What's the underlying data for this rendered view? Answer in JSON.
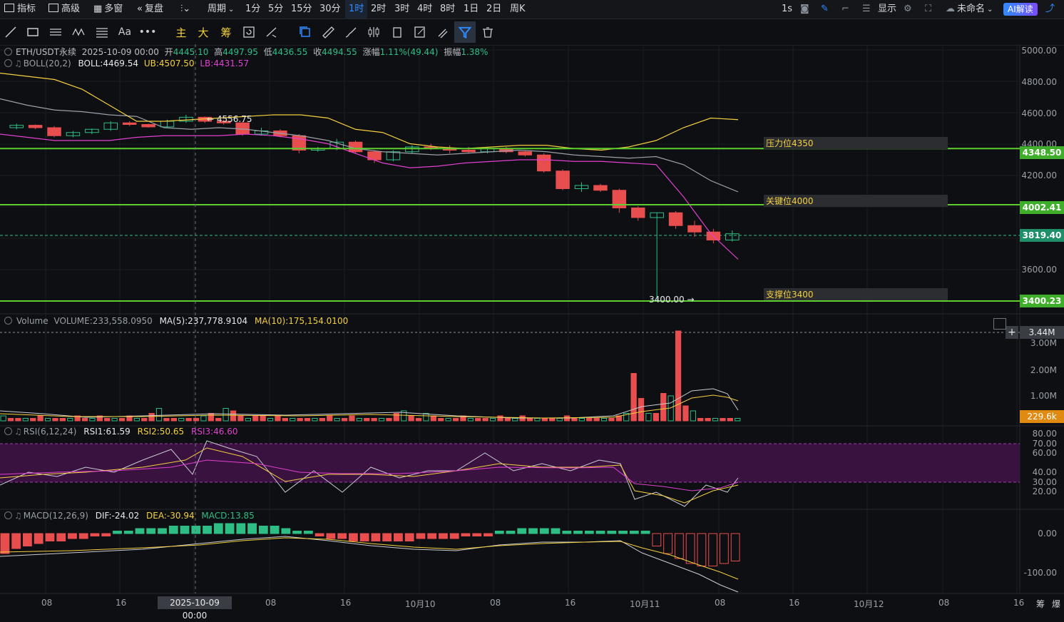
{
  "topbar": {
    "indicators": "指标",
    "advanced": "高级",
    "multiwin": "多窗",
    "replay": "复盘",
    "period": "周期",
    "intervals": [
      "1分",
      "5分",
      "15分",
      "30分",
      "1时",
      "2时",
      "3时",
      "4时",
      "8时",
      "1日",
      "2日",
      "周K"
    ],
    "active_interval": "1时",
    "chart_interval": "1s",
    "display": "显示",
    "layout_name": "未命名",
    "ai_button": "AI解读"
  },
  "toolbar": {
    "main_label": "主",
    "big_label": "大",
    "chip_label": "筹"
  },
  "legend": {
    "symbol": "ETH/USDT永续",
    "datetime": "2025-10-09 00:00",
    "open_label": "开",
    "open": "4445.10",
    "high_label": "高",
    "high": "4497.95",
    "low_label": "低",
    "low": "4436.55",
    "close_label": "收",
    "close": "4494.55",
    "change_label": "涨幅",
    "change": "1.11%(49.44)",
    "amp_label": "振幅",
    "amp": "1.38%",
    "boll_name": "BOLL(20,2)",
    "boll": "BOLL:4469.54",
    "ub": "UB:4507.50",
    "lb": "LB:4431.57"
  },
  "price_axis": [
    "5000.00",
    "4800.00",
    "4600.00",
    "4400.00",
    "4200.00",
    "3600.00"
  ],
  "price_tags": {
    "resist": "4348.50",
    "key": "4002.41",
    "current": "3819.40",
    "support": "3400.23"
  },
  "zones": {
    "resist": "压力位4350",
    "key": "关键位4000",
    "support": "支撑位3400"
  },
  "annotations": {
    "high_mark": "← 4556.75",
    "low_mark": "3400.00 →"
  },
  "volume": {
    "label": "Volume",
    "value": "VOLUME:233,558.0950",
    "ma5": "MA(5):237,778.9104",
    "ma10": "MA(10):175,154.0100",
    "axis": [
      "3.00M",
      "2.00M",
      "1.00M"
    ],
    "tag_top": "3.44M",
    "tag_cur": "229.6k"
  },
  "rsi": {
    "name": "RSI(6,12,24)",
    "rsi1": "RSI1:61.59",
    "rsi2": "RSI2:50.65",
    "rsi3": "RSI3:46.60",
    "axis": [
      "80.00",
      "70.00",
      "60.00",
      "40.00",
      "30.00",
      "20.00"
    ]
  },
  "macd": {
    "name": "MACD(12,26,9)",
    "dif": "DIF:-24.02",
    "dea": "DEA:-30.94",
    "macd": "MACD:13.85",
    "axis": [
      "0.00",
      "-100.00"
    ]
  },
  "xaxis": {
    "labels": [
      "08",
      "16",
      "08",
      "16",
      "10月10",
      "08",
      "16",
      "10月11",
      "08",
      "16",
      "10月12",
      "08",
      "16"
    ],
    "crosshair_label": "2025-10-09 00:00",
    "footer_icons": [
      "筹",
      "爆"
    ]
  },
  "colors": {
    "up": "#2ebd85",
    "down": "#e84e4e",
    "ub": "#f4d03f",
    "lb": "#e040d0",
    "level": "#5ccf2f",
    "accent": "#2f8cff"
  },
  "chart_data": {
    "type": "line",
    "series": [
      {
        "name": "BOLL",
        "values": [
          4660,
          4620,
          4590,
          4580,
          4560,
          4550,
          4480,
          4470,
          4480,
          4470,
          4450,
          4430,
          4400,
          4350,
          4330,
          4320,
          4310,
          4320,
          4330,
          4340,
          4330,
          4310,
          4300,
          4290,
          4300,
          4250,
          4150,
          4080
        ]
      },
      {
        "name": "UB",
        "values": [
          4820,
          4800,
          4780,
          4720,
          4620,
          4520,
          4520,
          4530,
          4540,
          4550,
          4560,
          4560,
          4540,
          4470,
          4450,
          4380,
          4360,
          4350,
          4360,
          4370,
          4370,
          4350,
          4340,
          4360,
          4400,
          4480,
          4540,
          4530
        ]
      },
      {
        "name": "LB",
        "values": [
          4440,
          4420,
          4400,
          4400,
          4400,
          4420,
          4430,
          4430,
          4430,
          4440,
          4430,
          4410,
          4380,
          4320,
          4260,
          4230,
          4240,
          4260,
          4270,
          4280,
          4280,
          4270,
          4270,
          4260,
          4250,
          4050,
          3820,
          3660
        ]
      }
    ],
    "candles": [
      [
        4480,
        4505,
        4470,
        4495
      ],
      [
        4495,
        4500,
        4470,
        4480
      ],
      [
        4480,
        4490,
        4420,
        4430
      ],
      [
        4430,
        4460,
        4420,
        4450
      ],
      [
        4450,
        4475,
        4440,
        4470
      ],
      [
        4470,
        4520,
        4460,
        4510
      ],
      [
        4510,
        4520,
        4490,
        4500
      ],
      [
        4500,
        4505,
        4480,
        4485
      ],
      [
        4485,
        4530,
        4480,
        4520
      ],
      [
        4520,
        4560,
        4510,
        4545
      ],
      [
        4545,
        4550,
        4510,
        4520
      ],
      [
        4520,
        4530,
        4500,
        4510
      ],
      [
        4510,
        4520,
        4430,
        4440
      ],
      [
        4440,
        4480,
        4430,
        4460
      ],
      [
        4460,
        4470,
        4420,
        4430
      ],
      [
        4430,
        4440,
        4320,
        4340
      ],
      [
        4340,
        4360,
        4330,
        4350
      ],
      [
        4350,
        4410,
        4340,
        4390
      ],
      [
        4390,
        4400,
        4320,
        4330
      ],
      [
        4330,
        4340,
        4260,
        4280
      ],
      [
        4280,
        4340,
        4270,
        4330
      ],
      [
        4330,
        4370,
        4320,
        4360
      ],
      [
        4360,
        4380,
        4340,
        4350
      ],
      [
        4350,
        4370,
        4320,
        4340
      ],
      [
        4340,
        4360,
        4320,
        4330
      ],
      [
        4330,
        4360,
        4320,
        4350
      ],
      [
        4350,
        4360,
        4320,
        4330
      ],
      [
        4330,
        4340,
        4300,
        4310
      ],
      [
        4310,
        4320,
        4200,
        4210
      ],
      [
        4210,
        4220,
        4090,
        4100
      ],
      [
        4100,
        4140,
        4080,
        4120
      ],
      [
        4120,
        4130,
        4080,
        4090
      ],
      [
        4090,
        4100,
        3950,
        3980
      ],
      [
        3980,
        3990,
        3900,
        3920
      ],
      [
        3920,
        3950,
        3400,
        3950
      ],
      [
        3950,
        3960,
        3850,
        3870
      ],
      [
        3870,
        3900,
        3800,
        3830
      ],
      [
        3830,
        3850,
        3760,
        3780
      ],
      [
        3780,
        3840,
        3770,
        3819
      ]
    ],
    "levels": [
      4350,
      4000,
      3400
    ],
    "ylim": [
      3350,
      5000
    ]
  }
}
